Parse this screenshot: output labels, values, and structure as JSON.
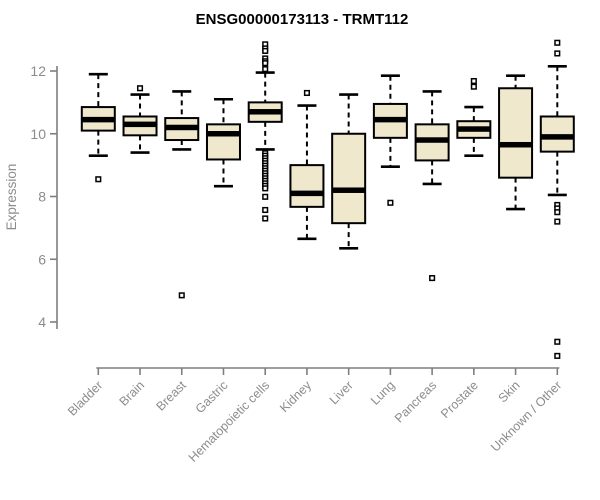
{
  "title": "ENSG00000173113 - TRMT112",
  "chart_data": {
    "type": "boxplot",
    "title": "ENSG00000173113 - TRMT112",
    "xlabel": "",
    "ylabel": "Expression",
    "y_ticks": [
      4,
      6,
      8,
      10,
      12
    ],
    "ylim": [
      2.8,
      13.0
    ],
    "grid": false,
    "legend": null,
    "categories": [
      "Bladder",
      "Brain",
      "Breast",
      "Gastric",
      "Hematopoietic cells",
      "Kidney",
      "Liver",
      "Lung",
      "Pancreas",
      "Prostate",
      "Skin",
      "Unknown / Other"
    ],
    "series": [
      {
        "label": "Bladder",
        "whisker_low": 9.3,
        "q1": 10.1,
        "median": 10.45,
        "q3": 10.85,
        "whisker_high": 11.9,
        "outliers": [
          8.55
        ]
      },
      {
        "label": "Brain",
        "whisker_low": 9.4,
        "q1": 9.95,
        "median": 10.3,
        "q3": 10.55,
        "whisker_high": 11.25,
        "outliers": [
          11.45
        ]
      },
      {
        "label": "Breast",
        "whisker_low": 9.5,
        "q1": 9.8,
        "median": 10.2,
        "q3": 10.5,
        "whisker_high": 11.35,
        "outliers": [
          4.85
        ]
      },
      {
        "label": "Gastric",
        "whisker_low": 8.33,
        "q1": 9.18,
        "median": 10.0,
        "q3": 10.3,
        "whisker_high": 11.1,
        "outliers": []
      },
      {
        "label": "Hematopoietic cells",
        "whisker_low": 9.5,
        "q1": 10.38,
        "median": 10.7,
        "q3": 11.0,
        "whisker_high": 11.95,
        "outliers": [
          12.85,
          12.72,
          12.64,
          12.4,
          12.31,
          12.25,
          12.06,
          9.38,
          9.3,
          9.22,
          9.14,
          9.06,
          8.98,
          8.9,
          8.82,
          8.74,
          8.66,
          8.58,
          8.5,
          8.42,
          8.34,
          8.26,
          7.99,
          7.57,
          7.3
        ]
      },
      {
        "label": "Kidney",
        "whisker_low": 6.65,
        "q1": 7.67,
        "median": 8.1,
        "q3": 9.0,
        "whisker_high": 10.9,
        "outliers": [
          11.3
        ]
      },
      {
        "label": "Liver",
        "whisker_low": 6.35,
        "q1": 7.15,
        "median": 8.2,
        "q3": 10.0,
        "whisker_high": 11.25,
        "outliers": []
      },
      {
        "label": "Lung",
        "whisker_low": 8.95,
        "q1": 9.87,
        "median": 10.45,
        "q3": 10.95,
        "whisker_high": 11.85,
        "outliers": [
          7.8
        ]
      },
      {
        "label": "Pancreas",
        "whisker_low": 8.4,
        "q1": 9.15,
        "median": 9.8,
        "q3": 10.3,
        "whisker_high": 11.35,
        "outliers": [
          5.4
        ]
      },
      {
        "label": "Prostate",
        "whisker_low": 9.3,
        "q1": 9.87,
        "median": 10.15,
        "q3": 10.4,
        "whisker_high": 10.85,
        "outliers": [
          11.68,
          11.5
        ]
      },
      {
        "label": "Skin",
        "whisker_low": 7.6,
        "q1": 8.6,
        "median": 9.65,
        "q3": 11.45,
        "whisker_high": 11.85,
        "outliers": []
      },
      {
        "label": "Unknown / Other",
        "whisker_low": 8.05,
        "q1": 9.43,
        "median": 9.9,
        "q3": 10.55,
        "whisker_high": 12.15,
        "outliers": [
          12.9,
          12.56,
          7.73,
          7.62,
          7.5,
          7.2,
          3.37,
          2.92
        ]
      }
    ],
    "colors": {
      "box_fill": "#EFE8CD",
      "box_stroke": "#000000",
      "median": "#000000",
      "axis": "#7F7F7F",
      "tick_label": "#8C8C8C",
      "title": "#000000",
      "background": "#FFFFFF"
    }
  }
}
